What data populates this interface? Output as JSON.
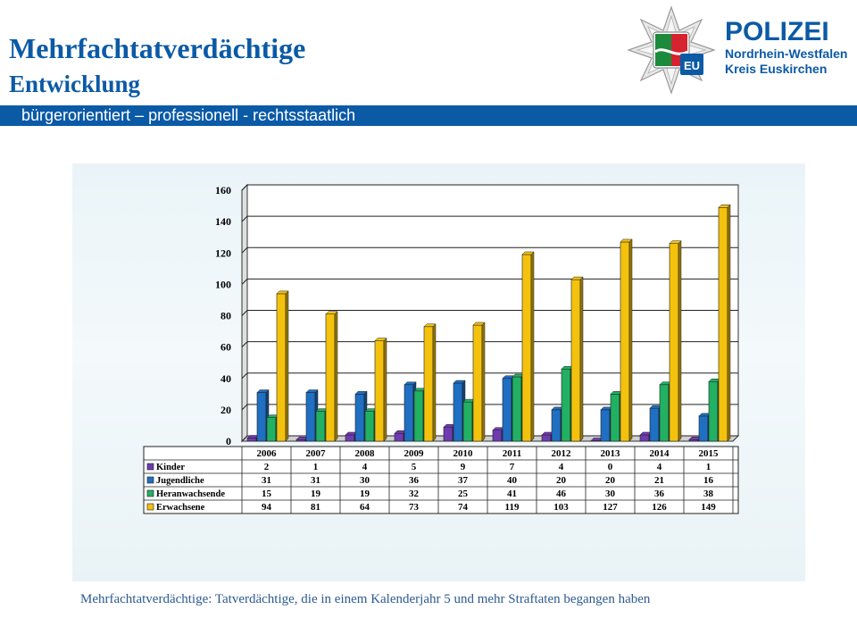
{
  "header": {
    "title": "Mehrfachtatverdächtige",
    "subtitle": "Entwicklung",
    "banner": "bürgerorientiert – professionell - rechtsstaatlich"
  },
  "logo": {
    "brand": "POLIZEI",
    "line1": "Nordrhein-Westfalen",
    "line2": "Kreis Euskirchen",
    "badge_text": "EU",
    "icon": "police-star-icon"
  },
  "footnote": "Mehrfachtatverdächtige: Tatverdächtige, die in einem Kalenderjahr 5 und mehr Straftaten begangen haben",
  "colors": {
    "brand_blue": "#0b5aa6",
    "kinder": "#6f3bb0",
    "jugendliche": "#1f6fc2",
    "heranwachsende": "#22b063",
    "erwachsene": "#f4c20d"
  },
  "chart_data": {
    "type": "bar",
    "style": "3d-clustered-columns-with-data-table",
    "categories": [
      "2006",
      "2007",
      "2008",
      "2009",
      "2010",
      "2011",
      "2012",
      "2013",
      "2014",
      "2015"
    ],
    "series": [
      {
        "name": "Kinder",
        "values": [
          2,
          1,
          4,
          5,
          9,
          7,
          4,
          0,
          4,
          1
        ]
      },
      {
        "name": "Jugendliche",
        "values": [
          31,
          31,
          30,
          36,
          37,
          40,
          20,
          20,
          21,
          16
        ]
      },
      {
        "name": "Heranwachsende",
        "values": [
          15,
          19,
          19,
          32,
          25,
          41,
          46,
          30,
          36,
          38
        ]
      },
      {
        "name": "Erwachsene",
        "values": [
          94,
          81,
          64,
          73,
          74,
          119,
          103,
          127,
          126,
          149
        ]
      }
    ],
    "yticks": [
      0,
      20,
      40,
      60,
      80,
      100,
      120,
      140,
      160
    ],
    "ylim": [
      0,
      160
    ],
    "grid": true,
    "legend": "in-table"
  }
}
